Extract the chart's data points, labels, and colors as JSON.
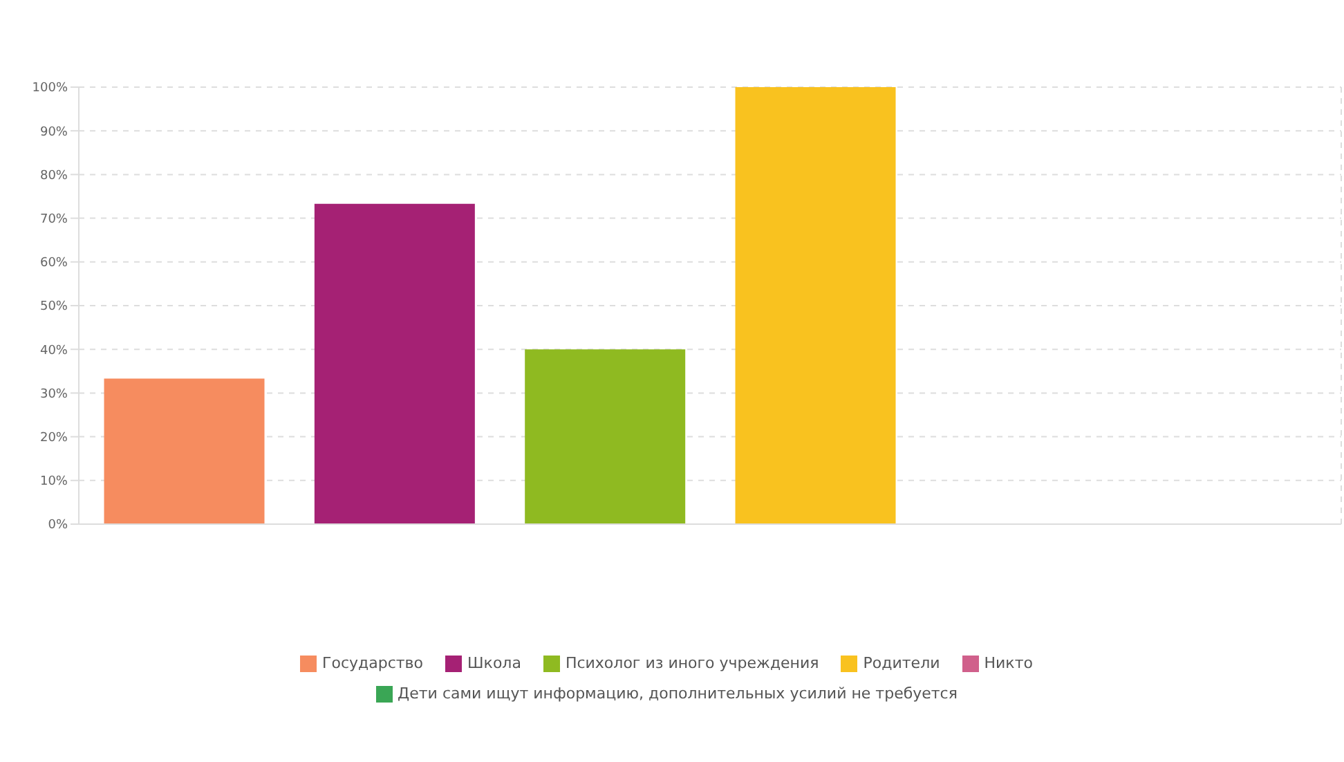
{
  "chart_data": {
    "type": "bar",
    "categories": [
      null,
      null,
      null,
      null,
      null,
      null
    ],
    "series": [
      {
        "name": "Государство",
        "color": "#f68c5f",
        "values": [
          33.3,
          null,
          null,
          null,
          null,
          null
        ]
      },
      {
        "name": "Школа",
        "color": "#a52174",
        "values": [
          null,
          73.3,
          null,
          null,
          null,
          null
        ]
      },
      {
        "name": "Психолог из иного учреждения",
        "color": "#8fba21",
        "values": [
          null,
          null,
          40,
          null,
          null,
          null
        ]
      },
      {
        "name": "Родители",
        "color": "#f9c21f",
        "values": [
          null,
          null,
          null,
          100,
          null,
          null
        ]
      },
      {
        "name": "Никто",
        "color": "#d0608b",
        "values": [
          null,
          null,
          null,
          null,
          0,
          null
        ]
      },
      {
        "name": "Дети сами ищут информацию, дополнительных усилий не требуется",
        "color": "#3aa655",
        "values": [
          null,
          null,
          null,
          null,
          null,
          0
        ]
      }
    ],
    "ylim": [
      0,
      100
    ],
    "yticks": [
      {
        "value": 0,
        "label": "0%"
      },
      {
        "value": 10,
        "label": "10%"
      },
      {
        "value": 20,
        "label": "20%"
      },
      {
        "value": 30,
        "label": "30%"
      },
      {
        "value": 40,
        "label": "40%"
      },
      {
        "value": 50,
        "label": "50%"
      },
      {
        "value": 60,
        "label": "60%"
      },
      {
        "value": 70,
        "label": "70%"
      },
      {
        "value": 80,
        "label": "80%"
      },
      {
        "value": 90,
        "label": "90%"
      },
      {
        "value": 100,
        "label": "100%"
      }
    ],
    "grid": true,
    "legend": "bottom",
    "tick_labels": "y"
  }
}
